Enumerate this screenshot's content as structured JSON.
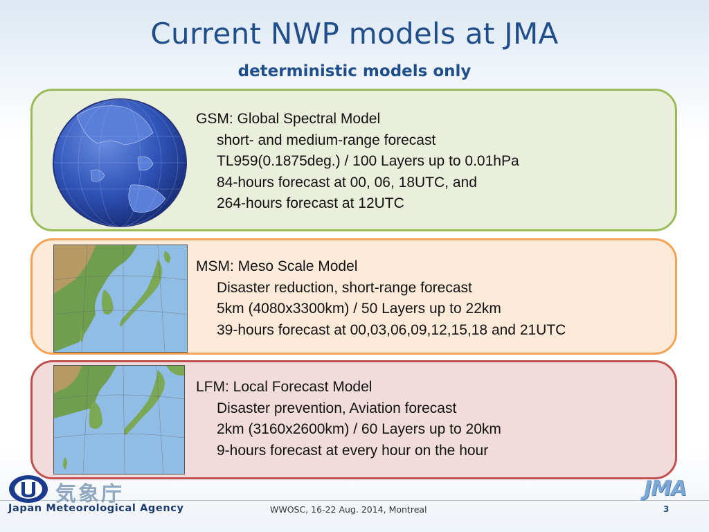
{
  "slide": {
    "title": "Current NWP models at JMA",
    "subtitle": "deterministic models only"
  },
  "models": {
    "gsm": {
      "heading": "GSM: Global Spectral Model",
      "lines": [
        "short- and medium-range forecast",
        "TL959(0.1875deg.) / 100 Layers up to 0.01hPa",
        "84-hours forecast at 00, 06, 18UTC, and",
        "264-hours forecast at 12UTC"
      ]
    },
    "msm": {
      "heading": "MSM: Meso Scale Model",
      "lines": [
        "Disaster reduction, short-range forecast",
        "5km (4080x3300km) / 50 Layers up to 22km",
        "39-hours forecast at 00,03,06,09,12,15,18 and 21UTC"
      ]
    },
    "lfm": {
      "heading": "LFM: Local Forecast Model",
      "lines": [
        "Disaster prevention, Aviation forecast",
        "2km (3160x2600km) / 60 Layers up to 20km",
        "9-hours forecast at every hour on the hour"
      ]
    }
  },
  "footer": {
    "agency_kanji": "気象庁",
    "agency_english": "Japan Meteorological Agency",
    "event": "WWOSC, 16-22 Aug. 2014, Montreal",
    "page_number": "3",
    "jma_logo": "JMA"
  },
  "colors": {
    "title": "#1f4e8a",
    "gsm_border": "#9bbb59",
    "msm_border": "#f3a256",
    "lfm_border": "#c0504d"
  }
}
